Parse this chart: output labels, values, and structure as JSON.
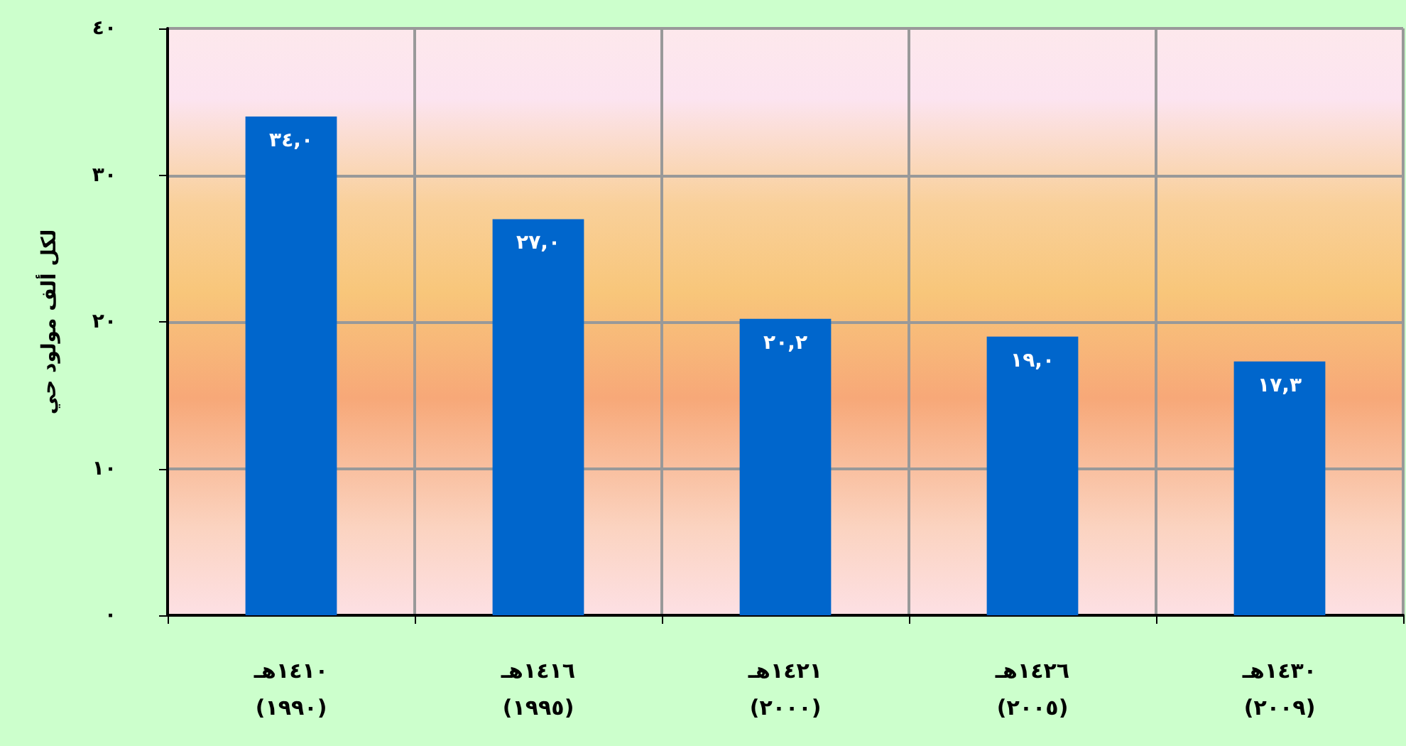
{
  "chart_data": {
    "type": "bar",
    "ylabel": "لكل ألف مولود حي",
    "categories": [
      "١٤١٠هـ\n(١٩٩٠)",
      "١٤١٦هـ\n(١٩٩٥)",
      "١٤٢١هـ\n(٢٠٠٠)",
      "١٤٢٦هـ\n(٢٠٠٥)",
      "١٤٣٠هـ\n(٢٠٠٩)"
    ],
    "values": [
      34.0,
      27.0,
      20.2,
      19.0,
      17.3
    ],
    "value_labels": [
      "٣٤,٠",
      "٢٧,٠",
      "٢٠,٢",
      "١٩,٠",
      "١٧,٣"
    ],
    "color": "#0066cc",
    "ylim": [
      0,
      40
    ],
    "yticks": [
      {
        "value": 0,
        "label": "٠"
      },
      {
        "value": 10,
        "label": "١٠"
      },
      {
        "value": 20,
        "label": "٢٠"
      },
      {
        "value": 30,
        "label": "٣٠"
      },
      {
        "value": 40,
        "label": "٤٠"
      }
    ],
    "grid": true
  }
}
